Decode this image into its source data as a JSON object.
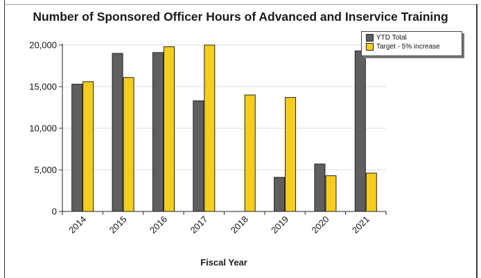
{
  "chart_data": {
    "type": "bar",
    "title": "Number of Sponsored Officer Hours of Advanced and Inservice Training",
    "xlabel": "Fiscal Year",
    "ylabel": "",
    "ylim": [
      0,
      20000
    ],
    "yticks": [
      0,
      5000,
      10000,
      15000,
      20000
    ],
    "ytick_labels": [
      "0",
      "5,000",
      "10,000",
      "15,000",
      "20,000"
    ],
    "grid": true,
    "legend_position": "top-right",
    "categories": [
      "2014",
      "2015",
      "2016",
      "2017",
      "2018",
      "2019",
      "2020",
      "2021"
    ],
    "series": [
      {
        "name": "YTD Total",
        "color": "#5f5f5f",
        "values": [
          15300,
          19000,
          19100,
          13300,
          0,
          4100,
          5700,
          19300
        ]
      },
      {
        "name": "Target - 5% increase",
        "color": "#f5cd1e",
        "values": [
          15600,
          16100,
          19800,
          20000,
          14000,
          13700,
          4300,
          4600
        ]
      }
    ]
  }
}
